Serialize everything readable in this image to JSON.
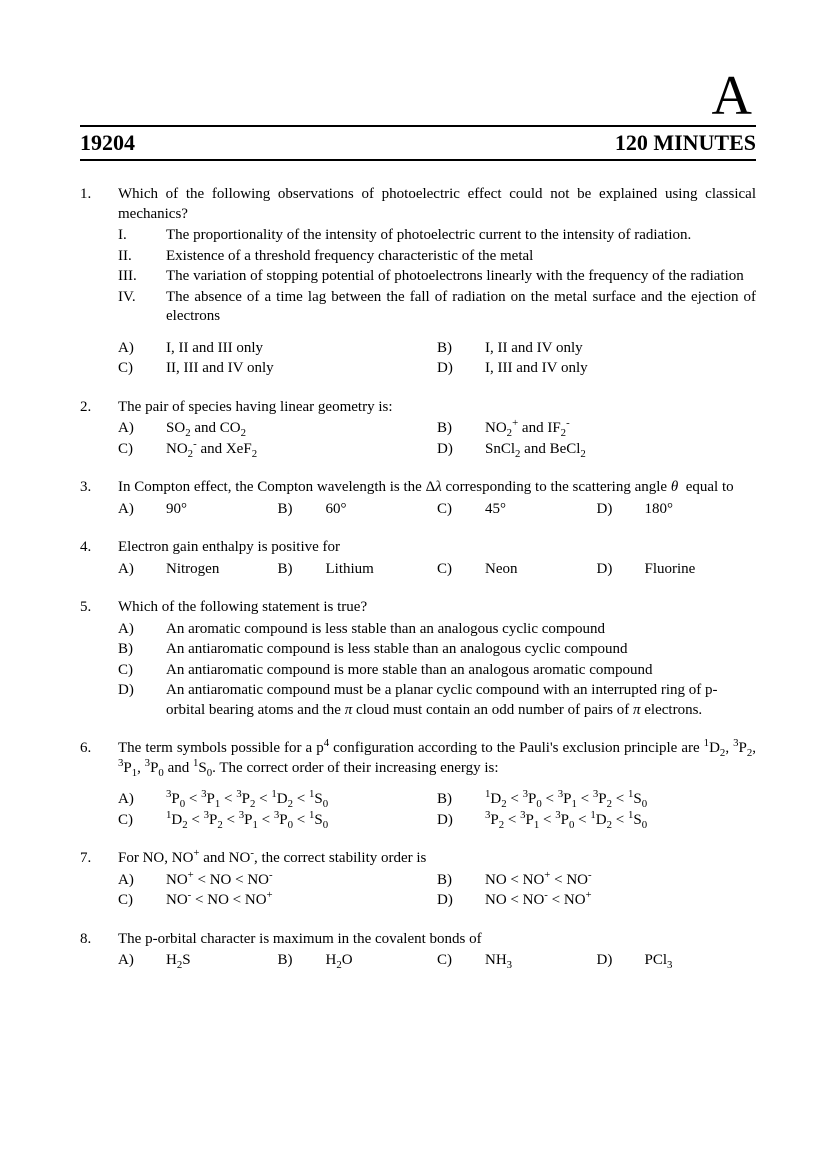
{
  "header": {
    "letter": "A",
    "code": "19204",
    "time": "120 MINUTES"
  },
  "questions": [
    {
      "num": "1.",
      "stem": "Which of the following observations of photoelectric effect could not be explained using classical mechanics?",
      "statements": [
        {
          "label": "I.",
          "text": "The proportionality of the intensity of photoelectric current to the intensity of radiation."
        },
        {
          "label": "II.",
          "text": "Existence of a threshold frequency characteristic of the metal"
        },
        {
          "label": "III.",
          "text": "The variation of stopping potential of photoelectrons linearly with the frequency of the radiation"
        },
        {
          "label": "IV.",
          "text": "The absence of a time lag between the fall of radiation on the metal surface and the ejection of electrons"
        }
      ],
      "layout": "2col",
      "options_spaced": true,
      "options": [
        {
          "label": "A)",
          "html": "I, II and III only"
        },
        {
          "label": "B)",
          "html": "I, II and IV only"
        },
        {
          "label": "C)",
          "html": "II, III and IV only"
        },
        {
          "label": "D)",
          "html": "I, III and IV only"
        }
      ]
    },
    {
      "num": "2.",
      "stem": "The pair of species having linear geometry is:",
      "layout": "2col",
      "options": [
        {
          "label": "A)",
          "html": "SO<sub>2</sub> and CO<sub>2</sub>"
        },
        {
          "label": "B)",
          "html": "NO<sub>2</sub><sup>+</sup> and IF<sub>2</sub><sup>-</sup>"
        },
        {
          "label": "C)",
          "html": "NO<sub>2</sub><sup>-</sup> and XeF<sub>2</sub>"
        },
        {
          "label": "D)",
          "html": "SnCl<sub>2</sub> and BeCl<sub>2</sub>"
        }
      ]
    },
    {
      "num": "3.",
      "stem_html": "In Compton effect, the Compton wavelength is the Δ<i>λ</i> corresponding to the scattering angle <i>θ</i>&nbsp; equal to",
      "layout": "4col",
      "options": [
        {
          "label": "A)",
          "html": "90°"
        },
        {
          "label": "B)",
          "html": "60°"
        },
        {
          "label": "C)",
          "html": "45°"
        },
        {
          "label": "D)",
          "html": "180°"
        }
      ]
    },
    {
      "num": "4.",
      "stem": "Electron gain enthalpy is positive for",
      "layout": "4col",
      "options": [
        {
          "label": "A)",
          "html": "Nitrogen"
        },
        {
          "label": "B)",
          "html": "Lithium"
        },
        {
          "label": "C)",
          "html": "Neon"
        },
        {
          "label": "D)",
          "html": "Fluorine"
        }
      ]
    },
    {
      "num": "5.",
      "stem": "Which of the following statement is true?",
      "layout": "1col",
      "options": [
        {
          "label": "A)",
          "html": "An aromatic compound is less stable than an analogous cyclic compound"
        },
        {
          "label": "B)",
          "html": "An antiaromatic compound is less stable than an analogous cyclic compound"
        },
        {
          "label": "C)",
          "html": "An antiaromatic compound is more stable than an analogous aromatic compound"
        },
        {
          "label": "D)",
          "html": "An antiaromatic compound must be a planar cyclic compound with an interrupted ring of p-orbital bearing atoms and the <i>π</i> cloud must contain an odd number of pairs of <i>π</i> electrons."
        }
      ]
    },
    {
      "num": "6.",
      "stem_html": "The term symbols possible for a p<sup>4</sup> configuration according to the Pauli's exclusion principle are <sup>1</sup>D<sub>2</sub>, <sup>3</sup>P<sub>2</sub>, <sup>3</sup>P<sub>1</sub>, <sup>3</sup>P<sub>0</sub> and <sup>1</sup>S<sub>0</sub>. The correct order of their increasing energy is:",
      "stem_justify": true,
      "layout": "2col",
      "options_spaced": true,
      "options": [
        {
          "label": "A)",
          "html": "<sup>3</sup>P<sub>0</sub> &lt; <sup>3</sup>P<sub>1</sub> &lt; <sup>3</sup>P<sub>2</sub> &lt; <sup>1</sup>D<sub>2</sub> &lt; <sup>1</sup>S<sub>0</sub>"
        },
        {
          "label": "B)",
          "html": "<sup>1</sup>D<sub>2</sub> &lt; <sup>3</sup>P<sub>0</sub> &lt; <sup>3</sup>P<sub>1</sub> &lt; <sup>3</sup>P<sub>2</sub> &lt; <sup>1</sup>S<sub>0</sub>"
        },
        {
          "label": "C)",
          "html": "<sup>1</sup>D<sub>2</sub> &lt; <sup>3</sup>P<sub>2</sub> &lt; <sup>3</sup>P<sub>1</sub> &lt; <sup>3</sup>P<sub>0</sub> &lt; <sup>1</sup>S<sub>0</sub>"
        },
        {
          "label": "D)",
          "html": "<sup>3</sup>P<sub>2</sub> &lt; <sup>3</sup>P<sub>1</sub> &lt; <sup>3</sup>P<sub>0</sub> &lt; <sup>1</sup>D<sub>2</sub> &lt; <sup>1</sup>S<sub>0</sub>"
        }
      ]
    },
    {
      "num": "7.",
      "stem_html": "For NO, NO<sup>+</sup> and NO<sup>-</sup>, the correct stability order is",
      "layout": "2col",
      "options": [
        {
          "label": "A)",
          "html": "NO<sup>+</sup> &lt; NO &lt; NO<sup>-</sup>"
        },
        {
          "label": "B)",
          "html": "NO &lt; NO<sup>+</sup> &lt; NO<sup>-</sup>"
        },
        {
          "label": "C)",
          "html": "NO<sup>-</sup> &lt; NO &lt; NO<sup>+</sup>"
        },
        {
          "label": "D)",
          "html": "NO &lt; NO<sup>-</sup> &lt; NO<sup>+</sup>"
        }
      ]
    },
    {
      "num": "8.",
      "stem": "The p-orbital character is maximum in the covalent bonds of",
      "layout": "4col",
      "options": [
        {
          "label": "A)",
          "html": "H<sub>2</sub>S"
        },
        {
          "label": "B)",
          "html": "H<sub>2</sub>O"
        },
        {
          "label": "C)",
          "html": "NH<sub>3</sub>"
        },
        {
          "label": "D)",
          "html": "PCl<sub>3</sub>"
        }
      ]
    }
  ]
}
